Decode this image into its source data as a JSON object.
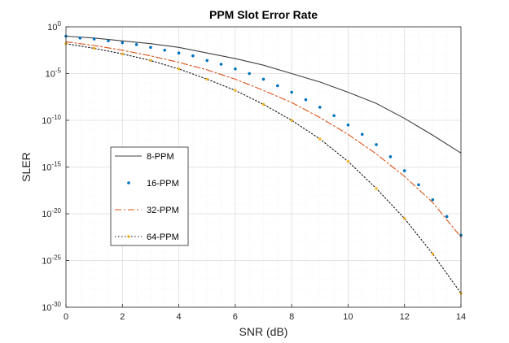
{
  "chart_data": {
    "type": "line",
    "title": "PPM Slot Error Rate",
    "xlabel": "SNR (dB)",
    "ylabel": "SLER",
    "xlim": [
      0,
      14
    ],
    "ylim_exponent": [
      -30,
      0
    ],
    "y_scale": "log",
    "x_ticks": [
      "0",
      "2",
      "4",
      "6",
      "8",
      "10",
      "12",
      "14"
    ],
    "y_ticks": [
      {
        "base": "10",
        "exp": "0"
      },
      {
        "base": "10",
        "exp": "-5"
      },
      {
        "base": "10",
        "exp": "-10"
      },
      {
        "base": "10",
        "exp": "-15"
      },
      {
        "base": "10",
        "exp": "-20"
      },
      {
        "base": "10",
        "exp": "-25"
      },
      {
        "base": "10",
        "exp": "-30"
      }
    ],
    "grid": true,
    "legend_position": "lower-left",
    "series": [
      {
        "name": "8-PPM",
        "style": "solid",
        "color": "#404040",
        "x": [
          0,
          1,
          2,
          3,
          4,
          5,
          6,
          7,
          8,
          9,
          10,
          11,
          12,
          13,
          14
        ],
        "y_exp": [
          -1.0,
          -1.2,
          -1.5,
          -1.8,
          -2.2,
          -2.8,
          -3.4,
          -4.1,
          -5.0,
          -5.9,
          -7.0,
          -8.2,
          -9.8,
          -11.6,
          -13.5
        ]
      },
      {
        "name": "16-PPM",
        "style": "dots",
        "color": "#0072BD",
        "x": [
          0,
          0.5,
          1,
          1.5,
          2,
          2.5,
          3,
          3.5,
          4,
          4.5,
          5,
          5.5,
          6,
          6.5,
          7,
          7.5,
          8,
          8.5,
          9,
          9.5,
          10,
          10.5,
          11,
          11.5,
          12,
          12.5,
          13,
          13.5,
          14
        ],
        "y_exp": [
          -1.0,
          -1.2,
          -1.3,
          -1.5,
          -1.7,
          -1.9,
          -2.2,
          -2.5,
          -2.8,
          -3.1,
          -3.6,
          -4.0,
          -4.5,
          -5.0,
          -5.6,
          -6.3,
          -7.0,
          -7.8,
          -8.6,
          -9.5,
          -10.5,
          -11.5,
          -12.6,
          -13.9,
          -15.4,
          -16.9,
          -18.5,
          -20.3,
          -22.3
        ]
      },
      {
        "name": "32-PPM",
        "style": "dashdot",
        "color": "#D95319",
        "x": [
          0,
          1,
          2,
          3,
          4,
          5,
          6,
          7,
          8,
          9,
          10,
          11,
          12,
          13,
          14
        ],
        "y_exp": [
          -1.6,
          -2.0,
          -2.5,
          -3.1,
          -3.8,
          -4.6,
          -5.6,
          -6.8,
          -8.1,
          -9.7,
          -11.5,
          -13.6,
          -16.0,
          -18.8,
          -22.5
        ]
      },
      {
        "name": "64-PPM",
        "style": "dotted",
        "color": "#111111",
        "marker_color": "#EDB120",
        "x": [
          0,
          1,
          2,
          3,
          4,
          5,
          6,
          7,
          8,
          9,
          10,
          11,
          12,
          13,
          14
        ],
        "y_exp": [
          -1.8,
          -2.3,
          -2.9,
          -3.6,
          -4.5,
          -5.6,
          -6.8,
          -8.3,
          -10.0,
          -12.0,
          -14.4,
          -17.3,
          -20.5,
          -24.3,
          -28.5
        ]
      }
    ]
  }
}
